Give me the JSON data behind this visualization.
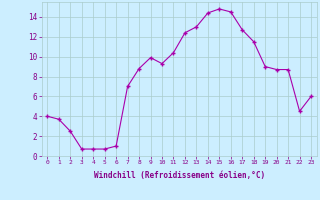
{
  "x": [
    0,
    1,
    2,
    3,
    4,
    5,
    6,
    7,
    8,
    9,
    10,
    11,
    12,
    13,
    14,
    15,
    16,
    17,
    18,
    19,
    20,
    21,
    22,
    23
  ],
  "y": [
    4,
    3.7,
    2.5,
    0.7,
    0.7,
    0.7,
    1.0,
    7.0,
    8.8,
    9.9,
    9.3,
    10.4,
    12.4,
    13.0,
    14.4,
    14.8,
    14.5,
    12.7,
    11.5,
    9.0,
    8.7,
    8.7,
    4.5,
    6.0
  ],
  "xlabel": "Windchill (Refroidissement éolien,°C)",
  "ylim": [
    0,
    15
  ],
  "xlim": [
    -0.5,
    23.5
  ],
  "yticks": [
    0,
    2,
    4,
    6,
    8,
    10,
    12,
    14
  ],
  "xticks": [
    0,
    1,
    2,
    3,
    4,
    5,
    6,
    7,
    8,
    9,
    10,
    11,
    12,
    13,
    14,
    15,
    16,
    17,
    18,
    19,
    20,
    21,
    22,
    23
  ],
  "line_color": "#aa00aa",
  "marker_color": "#aa00aa",
  "bg_color": "#cceeff",
  "grid_color": "#aacccc",
  "text_color": "#880088",
  "xlabel_fontsize": 5.5,
  "xtick_fontsize": 4.5,
  "ytick_fontsize": 5.5
}
